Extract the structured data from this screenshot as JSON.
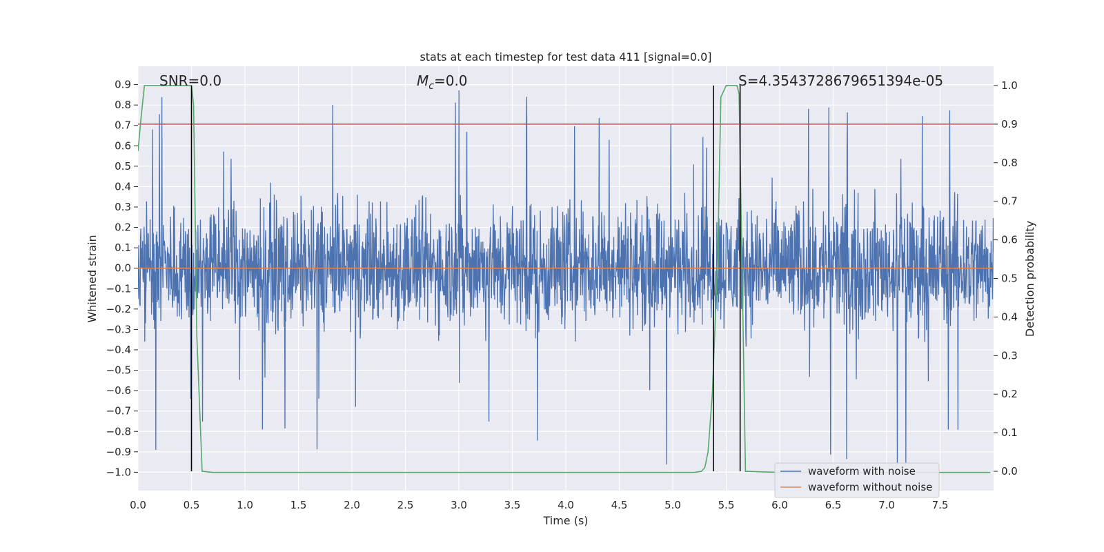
{
  "chart_data": {
    "type": "line",
    "title": "stats at each timestep for test data 411 [signal=0.0]",
    "xlabel": "Time (s)",
    "ylabel": "Whitened strain",
    "y2label": "Detection probability",
    "xlim": [
      0.0,
      8.0
    ],
    "ylim": [
      -1.09,
      0.99
    ],
    "y2lim": [
      -0.05,
      1.05
    ],
    "x_ticks": [
      0.0,
      0.5,
      1.0,
      1.5,
      2.0,
      2.5,
      3.0,
      3.5,
      4.0,
      4.5,
      5.0,
      5.5,
      6.0,
      6.5,
      7.0,
      7.5
    ],
    "x_tick_labels": [
      "0.0",
      "0.5",
      "1.0",
      "1.5",
      "2.0",
      "2.5",
      "3.0",
      "3.5",
      "4.0",
      "4.5",
      "5.0",
      "5.5",
      "6.0",
      "6.5",
      "7.0",
      "7.5"
    ],
    "y_ticks": [
      0.9,
      0.8,
      0.7,
      0.6,
      0.5,
      0.4,
      0.3,
      0.2,
      0.1,
      0.0,
      -0.1,
      -0.2,
      -0.3,
      -0.4,
      -0.5,
      -0.6,
      -0.7,
      -0.8,
      -0.9,
      -1.0
    ],
    "y_tick_labels": [
      "0.9",
      "0.8",
      "0.7",
      "0.6",
      "0.5",
      "0.4",
      "0.3",
      "0.2",
      "0.1",
      "0.0",
      "−0.1",
      "−0.2",
      "−0.3",
      "−0.4",
      "−0.5",
      "−0.6",
      "−0.7",
      "−0.8",
      "−0.9",
      "−1.0"
    ],
    "y2_ticks": [
      1.0,
      0.9,
      0.8,
      0.7,
      0.6,
      0.5,
      0.4,
      0.3,
      0.2,
      0.1,
      0.0
    ],
    "y2_tick_labels": [
      "1.0",
      "0.9",
      "0.8",
      "0.7",
      "0.6",
      "0.5",
      "0.4",
      "0.3",
      "0.2",
      "0.1",
      "0.0"
    ],
    "grid": true,
    "legend_location": "lower right",
    "annotations": {
      "snr": "SNR=0.0",
      "mc_symbol": "M",
      "mc_sub": "c",
      "mc_value": "=0.0",
      "s": "S=4.3543728679651394e-05"
    },
    "series": [
      {
        "name": "waveform with noise",
        "color": "#4c72b0",
        "kind": "noise",
        "x_range": [
          0.0,
          8.0
        ],
        "typical_envelope": [
          -0.42,
          0.47
        ],
        "peak_max": 0.88,
        "peak_min": -0.99
      },
      {
        "name": "waveform without noise",
        "color": "#dd8452",
        "x": [
          0.0,
          8.0
        ],
        "y": [
          0.0,
          0.0
        ]
      },
      {
        "color": "#55a868",
        "axis": "right",
        "x": [
          0.0,
          0.03,
          0.06,
          0.1,
          0.2,
          0.3,
          0.4,
          0.47,
          0.5,
          0.52,
          0.55,
          0.6,
          0.7,
          1.2,
          2.0,
          3.0,
          4.0,
          5.0,
          5.2,
          5.27,
          5.3,
          5.33,
          5.37,
          5.42,
          5.45,
          5.5,
          5.55,
          5.6,
          5.62,
          5.65,
          5.68,
          6.0,
          7.0,
          7.97
        ],
        "y": [
          0.83,
          0.92,
          1.0,
          1.0,
          1.0,
          1.0,
          1.0,
          1.0,
          1.0,
          0.95,
          0.35,
          0.0,
          -0.003,
          -0.003,
          -0.003,
          -0.003,
          -0.003,
          -0.003,
          -0.003,
          0.0,
          0.01,
          0.05,
          0.2,
          0.55,
          0.97,
          1.0,
          1.0,
          1.0,
          0.98,
          0.5,
          0.0,
          -0.003,
          -0.003,
          -0.003
        ]
      }
    ],
    "hlines": [
      {
        "axis": "right",
        "y": 0.9,
        "color": "#c44e52"
      }
    ],
    "vlines": [
      {
        "x": 0.5,
        "y2_range": [
          0.0,
          1.0
        ],
        "color": "#000000"
      },
      {
        "x": 5.38,
        "y2_range": [
          0.0,
          1.0
        ],
        "color": "#000000"
      },
      {
        "x": 5.63,
        "y2_range": [
          0.0,
          1.0
        ],
        "color": "#000000"
      }
    ],
    "colors": {
      "background": "#eaeaf2",
      "grid": "#ffffff",
      "legend_background": "#eaeaf2",
      "legend_border": "#cccccc"
    }
  }
}
